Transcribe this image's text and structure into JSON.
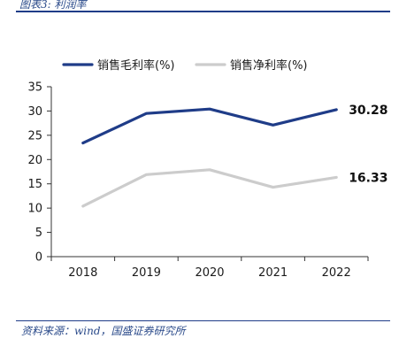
{
  "caption": "图表3: 利润率",
  "source": "资料来源：wind，国盛证券研究所",
  "chart_data": {
    "type": "line",
    "x": [
      "2018",
      "2019",
      "2020",
      "2021",
      "2022"
    ],
    "series": [
      {
        "name": "销售毛利率(%)",
        "values": [
          23.4,
          29.5,
          30.4,
          27.1,
          30.28
        ],
        "color": "#1f3c88",
        "end_label": "30.28"
      },
      {
        "name": "销售净利率(%)",
        "values": [
          10.4,
          16.9,
          17.9,
          14.3,
          16.33
        ],
        "color": "#cccccc",
        "end_label": "16.33"
      }
    ],
    "ylim": [
      0,
      35
    ],
    "yticks": [
      "0",
      "5",
      "10",
      "15",
      "20",
      "25",
      "30",
      "35"
    ],
    "grid": false,
    "legend": "top-left"
  }
}
